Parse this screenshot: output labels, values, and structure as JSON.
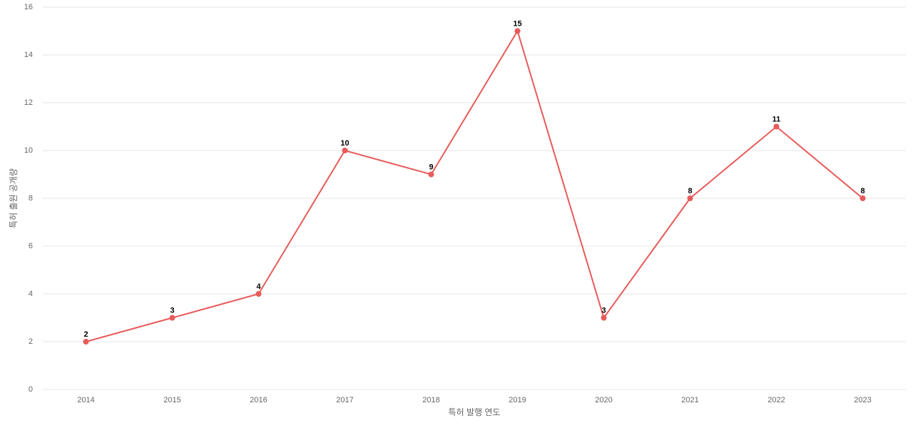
{
  "chart_data": {
    "type": "line",
    "xlabel": "특허 발행 연도",
    "ylabel": "특허 출원 공개량",
    "categories": [
      "2014",
      "2015",
      "2016",
      "2017",
      "2018",
      "2019",
      "2020",
      "2021",
      "2022",
      "2023"
    ],
    "values": [
      2,
      3,
      4,
      10,
      9,
      15,
      3,
      8,
      11,
      8
    ],
    "color": "#e85a5a",
    "ylim": [
      0,
      16
    ],
    "yticks": [
      0,
      2,
      4,
      6,
      8,
      10,
      12,
      14,
      16
    ],
    "grid": true
  }
}
